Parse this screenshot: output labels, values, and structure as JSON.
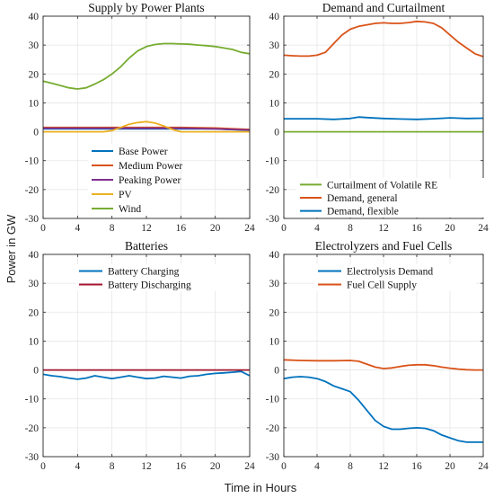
{
  "figure": {
    "ylabel": "Power in GW",
    "xlabel": "Time in Hours"
  },
  "chart_data": [
    {
      "type": "line",
      "title": "Supply by Power Plants",
      "xlabel": "",
      "ylabel": "",
      "xlim": [
        0,
        24
      ],
      "ylim": [
        -30,
        40
      ],
      "xticks": [
        0,
        4,
        8,
        12,
        16,
        20,
        24
      ],
      "yticks": [
        -30,
        -20,
        -10,
        0,
        10,
        20,
        30,
        40
      ],
      "grid": true,
      "legend": "center",
      "series": [
        {
          "name": "Base Power",
          "color": "#0072BD",
          "x": [
            0,
            4,
            8,
            12,
            16,
            20,
            24
          ],
          "y": [
            1.0,
            1.0,
            1.0,
            1.0,
            1.0,
            1.0,
            0.5
          ]
        },
        {
          "name": "Medium Power",
          "color": "#D95319",
          "x": [
            0,
            4,
            8,
            12,
            16,
            20,
            24
          ],
          "y": [
            1.5,
            1.5,
            1.5,
            1.5,
            1.5,
            1.3,
            0.8
          ]
        },
        {
          "name": "Peaking Power",
          "color": "#7E2F8E",
          "x": [
            0,
            4,
            8,
            12,
            16,
            20,
            24
          ],
          "y": [
            1.2,
            1.2,
            1.2,
            1.2,
            1.2,
            1.0,
            0.6
          ]
        },
        {
          "name": "PV",
          "color": "#EDB120",
          "x": [
            0,
            6,
            7,
            8,
            9,
            10,
            11,
            12,
            13,
            14,
            15,
            16,
            24
          ],
          "y": [
            0,
            0,
            0,
            0.4,
            1.5,
            2.6,
            3.2,
            3.5,
            3.0,
            2.0,
            0.8,
            0,
            0
          ]
        },
        {
          "name": "Wind",
          "color": "#77AC30",
          "x": [
            0,
            1,
            2,
            3,
            4,
            5,
            6,
            7,
            8,
            9,
            10,
            11,
            12,
            13,
            14,
            15,
            16,
            17,
            18,
            19,
            20,
            21,
            22,
            23,
            24
          ],
          "y": [
            17.5,
            16.8,
            16.0,
            15.2,
            14.8,
            15.2,
            16.5,
            18.0,
            20.0,
            22.5,
            25.5,
            28.0,
            29.5,
            30.2,
            30.5,
            30.5,
            30.4,
            30.3,
            30.0,
            29.8,
            29.5,
            29.0,
            28.5,
            27.5,
            27.0
          ]
        }
      ]
    },
    {
      "type": "line",
      "title": "Demand and Curtailment",
      "xlabel": "",
      "ylabel": "",
      "xlim": [
        0,
        24
      ],
      "ylim": [
        -30,
        40
      ],
      "xticks": [
        0,
        4,
        8,
        12,
        16,
        20,
        24
      ],
      "yticks": [
        -30,
        -20,
        -10,
        0,
        10,
        20,
        30,
        40
      ],
      "grid": true,
      "legend": "lower-right",
      "series": [
        {
          "name": "Curtailment of Volatile RE",
          "color": "#77AC30",
          "x": [
            0,
            24
          ],
          "y": [
            0,
            0
          ]
        },
        {
          "name": "Demand, general",
          "color": "#D95319",
          "x": [
            0,
            1,
            2,
            3,
            4,
            5,
            6,
            7,
            8,
            9,
            10,
            11,
            12,
            13,
            14,
            15,
            16,
            17,
            18,
            19,
            20,
            21,
            22,
            23,
            24
          ],
          "y": [
            26.5,
            26.3,
            26.2,
            26.2,
            26.5,
            27.5,
            30.5,
            33.5,
            35.5,
            36.5,
            37.0,
            37.5,
            37.7,
            37.5,
            37.5,
            37.8,
            38.2,
            38.0,
            37.5,
            36.0,
            33.5,
            31.0,
            29.0,
            27.0,
            26.0
          ]
        },
        {
          "name": "Demand, flexible",
          "color": "#0072BD",
          "x": [
            0,
            2,
            4,
            6,
            8,
            9,
            10,
            12,
            14,
            16,
            18,
            20,
            22,
            24
          ],
          "y": [
            4.5,
            4.5,
            4.5,
            4.3,
            4.6,
            5.1,
            4.9,
            4.6,
            4.4,
            4.3,
            4.5,
            4.8,
            4.6,
            4.7
          ]
        }
      ]
    },
    {
      "type": "line",
      "title": "Batteries",
      "xlabel": "",
      "ylabel": "",
      "xlim": [
        0,
        24
      ],
      "ylim": [
        -30,
        40
      ],
      "xticks": [
        0,
        4,
        8,
        12,
        16,
        20,
        24
      ],
      "yticks": [
        -30,
        -20,
        -10,
        0,
        10,
        20,
        30,
        40
      ],
      "grid": true,
      "legend": "top",
      "series": [
        {
          "name": "Battery Charging",
          "color": "#0072BD",
          "x": [
            0,
            1,
            2,
            3,
            4,
            5,
            6,
            7,
            8,
            9,
            10,
            11,
            12,
            13,
            14,
            15,
            16,
            17,
            18,
            19,
            20,
            21,
            22,
            23,
            24
          ],
          "y": [
            -1.5,
            -2.0,
            -2.3,
            -2.8,
            -3.2,
            -2.8,
            -2.0,
            -2.5,
            -3.0,
            -2.5,
            -2.0,
            -2.5,
            -3.0,
            -2.8,
            -2.2,
            -2.5,
            -2.8,
            -2.2,
            -2.0,
            -1.5,
            -1.2,
            -1.0,
            -0.8,
            -0.5,
            -2.0
          ]
        },
        {
          "name": "Battery Discharging",
          "color": "#A2142F",
          "x": [
            0,
            24
          ],
          "y": [
            0,
            0
          ]
        }
      ]
    },
    {
      "type": "line",
      "title": "Electrolyzers and Fuel Cells",
      "xlabel": "",
      "ylabel": "",
      "xlim": [
        0,
        24
      ],
      "ylim": [
        -30,
        40
      ],
      "xticks": [
        0,
        4,
        8,
        12,
        16,
        20,
        24
      ],
      "yticks": [
        -30,
        -20,
        -10,
        0,
        10,
        20,
        30,
        40
      ],
      "grid": true,
      "legend": "top",
      "series": [
        {
          "name": "Electrolysis Demand",
          "color": "#0072BD",
          "x": [
            0,
            1,
            2,
            3,
            4,
            5,
            6,
            7,
            8,
            9,
            10,
            11,
            12,
            13,
            14,
            15,
            16,
            17,
            18,
            19,
            20,
            21,
            22,
            23,
            24
          ],
          "y": [
            -3.0,
            -2.5,
            -2.3,
            -2.5,
            -3.0,
            -4.0,
            -5.5,
            -6.5,
            -7.5,
            -10.5,
            -14.0,
            -17.5,
            -19.5,
            -20.5,
            -20.5,
            -20.2,
            -20.0,
            -20.2,
            -21.0,
            -22.5,
            -23.5,
            -24.5,
            -25.0,
            -25.0,
            -25.0
          ]
        },
        {
          "name": "Fuel Cell Supply",
          "color": "#D95319",
          "x": [
            0,
            2,
            4,
            6,
            8,
            9,
            10,
            11,
            12,
            13,
            14,
            15,
            16,
            17,
            18,
            19,
            20,
            21,
            22,
            23,
            24
          ],
          "y": [
            3.5,
            3.3,
            3.2,
            3.2,
            3.3,
            3.0,
            2.0,
            1.0,
            0.5,
            0.7,
            1.2,
            1.6,
            1.8,
            1.8,
            1.5,
            1.0,
            0.6,
            0.3,
            0.1,
            0.0,
            0.0
          ]
        }
      ]
    }
  ]
}
